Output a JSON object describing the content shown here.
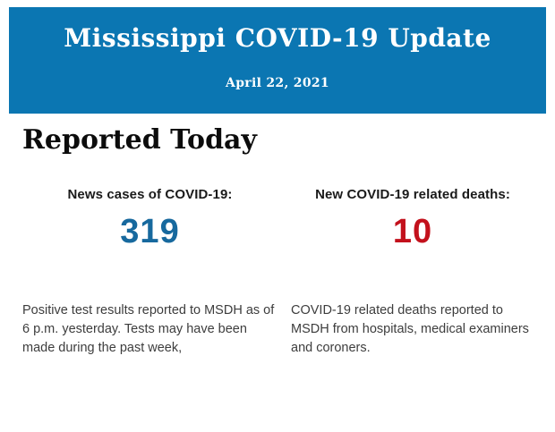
{
  "header": {
    "title": "Mississippi COVID-19 Update",
    "date": "April 22, 2021",
    "background_color": "#0b76b2",
    "text_color": "#ffffff"
  },
  "section": {
    "title": "Reported Today"
  },
  "stats": [
    {
      "label": "News cases of COVID-19:",
      "value": "319",
      "value_color": "#17699e",
      "description": "Positive test results reported to MSDH as of 6 p.m. yesterday. Tests may have been made during the past week,"
    },
    {
      "label": "New COVID-19 related deaths:",
      "value": "10",
      "value_color": "#c3111c",
      "description": "COVID-19 related deaths reported to MSDH from hospitals, medical examiners and coroners."
    }
  ]
}
